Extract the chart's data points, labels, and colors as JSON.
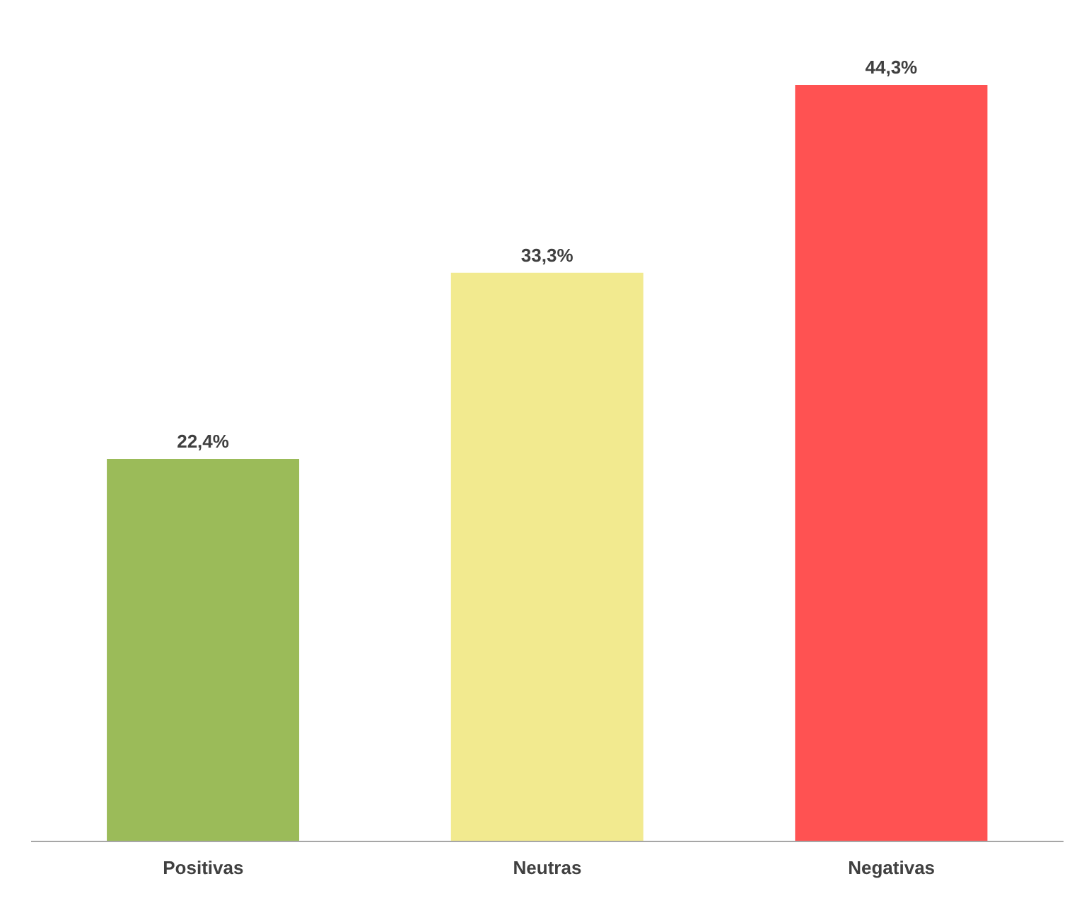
{
  "chart_data": {
    "type": "bar",
    "categories": [
      "Positivas",
      "Neutras",
      "Negativas"
    ],
    "values": [
      22.4,
      33.3,
      44.3
    ],
    "colors": [
      "#9bbb59",
      "#f2ea8f",
      "#ff5252"
    ],
    "value_labels": [
      "22,4%",
      "33,3%",
      "44,3%"
    ],
    "grid": false,
    "legend": false
  }
}
